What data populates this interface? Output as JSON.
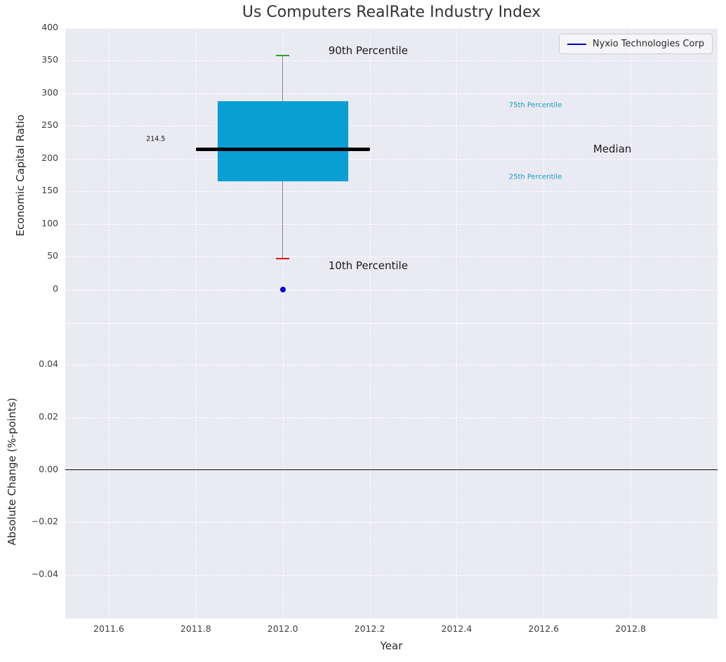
{
  "title": "Us Computers RealRate Industry Index",
  "legend": {
    "label": "Nyxio Technologies Corp"
  },
  "x_axis": {
    "label": "Year",
    "xlim": [
      2011.5,
      2013.0
    ],
    "ticks": {
      "values": [
        2011.6,
        2011.8,
        2012.0,
        2012.2,
        2012.4,
        2012.6,
        2012.8
      ],
      "labels": [
        "2011.6",
        "2011.8",
        "2012.0",
        "2012.2",
        "2012.4",
        "2012.6",
        "2012.8"
      ]
    }
  },
  "chart_data": [
    {
      "type": "boxplot",
      "panel": "top",
      "title": "Us Computers RealRate Industry Index",
      "ylabel": "Economic Capital Ratio",
      "ylim": [
        -52,
        400
      ],
      "grid": true,
      "legend_position": "upper right",
      "yticks": {
        "values": [
          0,
          50,
          100,
          150,
          200,
          250,
          300,
          350,
          400
        ],
        "labels": [
          "0",
          "50",
          "100",
          "150",
          "200",
          "250",
          "300",
          "350",
          "400"
        ]
      },
      "series": [
        {
          "name": "Industry percentile box",
          "x": 2012.0,
          "p10": 47,
          "p25": 165,
          "median": 214.5,
          "p75": 288,
          "p90": 358,
          "box_halfwidth": 0.15,
          "median_halfwidth": 0.2,
          "cap_halfwidth": 0.015
        }
      ],
      "points": [
        {
          "name": "Nyxio Technologies Corp",
          "x": 2012.0,
          "y": 0
        }
      ],
      "annotations": [
        {
          "id": "p90-label",
          "text": "90th Percentile",
          "x": 2012.105,
          "y": 366,
          "size": 15,
          "color": "#1a1a1a"
        },
        {
          "id": "p10-label",
          "text": "10th Percentile",
          "x": 2012.105,
          "y": 36,
          "size": 15,
          "color": "#1a1a1a"
        },
        {
          "id": "p75-label",
          "text": "75th Percentile",
          "x": 2012.52,
          "y": 282,
          "size": 10,
          "color": "#1899c7"
        },
        {
          "id": "p25-label",
          "text": "25th Percentile",
          "x": 2012.52,
          "y": 172,
          "size": 10,
          "color": "#1899c7"
        },
        {
          "id": "median-label",
          "text": "Median",
          "x": 2012.714,
          "y": 214.5,
          "size": 15,
          "color": "#1a1a1a"
        },
        {
          "id": "median-value",
          "text": "214.5",
          "x": 2011.686,
          "y": 230,
          "size": 9.5,
          "color": "#111111"
        }
      ]
    },
    {
      "type": "line",
      "panel": "bottom",
      "ylabel": "Absolute Change (%-points)",
      "ylim": [
        -0.0565,
        0.0555
      ],
      "grid": true,
      "zero_line": 0,
      "yticks": {
        "values": [
          -0.04,
          -0.02,
          0,
          0.02,
          0.04
        ],
        "labels": [
          "−0.04",
          "−0.02",
          "0.00",
          "0.02",
          "0.04"
        ]
      },
      "series": []
    }
  ],
  "colors": {
    "figure_bg": "#ffffff",
    "plot_bg": "#eaeaf2",
    "grid": "#ffffff",
    "box_fill": "#0a9fd3",
    "median_line": "#000000",
    "whisker_line": "#7f7f7f",
    "cap_top": "#2ca02c",
    "cap_bottom": "#e8000b",
    "point": "#0000cc",
    "legend_line": "#0000cc",
    "zero_line": "#000000",
    "title_text": "#333333",
    "tick_text": "#3d3d3d",
    "axis_label_text": "#262626"
  }
}
